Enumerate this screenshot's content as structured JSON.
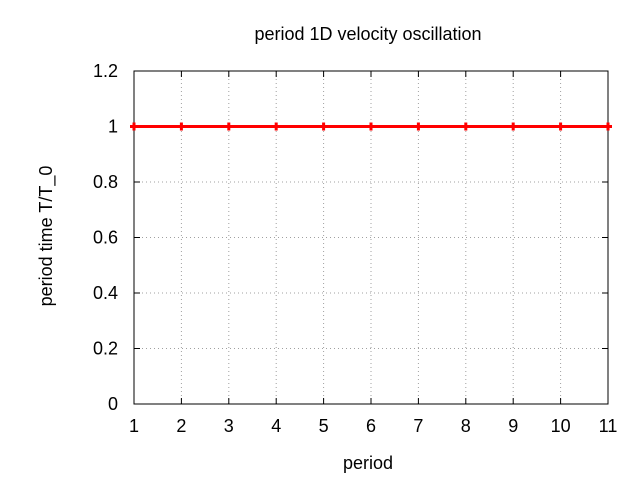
{
  "chart_data": {
    "type": "line",
    "title": "period 1D velocity oscillation",
    "xlabel": "period",
    "ylabel": "period time T/T_0",
    "xlim": [
      1,
      11
    ],
    "ylim": [
      0,
      1.2
    ],
    "xticks": [
      "1",
      "2",
      "3",
      "4",
      "5",
      "6",
      "7",
      "8",
      "9",
      "10",
      "11"
    ],
    "yticks": [
      "0",
      "0.2",
      "0.4",
      "0.6",
      "0.8",
      "1",
      "1.2"
    ],
    "grid": true,
    "legend": "none",
    "series": [
      {
        "color": "#ff0000",
        "marker": "plus",
        "x": [
          1,
          2,
          3,
          4,
          5,
          6,
          7,
          8,
          9,
          10,
          11
        ],
        "y": [
          1,
          1,
          1,
          1,
          1,
          1,
          1,
          1,
          1,
          1,
          1
        ]
      }
    ]
  }
}
